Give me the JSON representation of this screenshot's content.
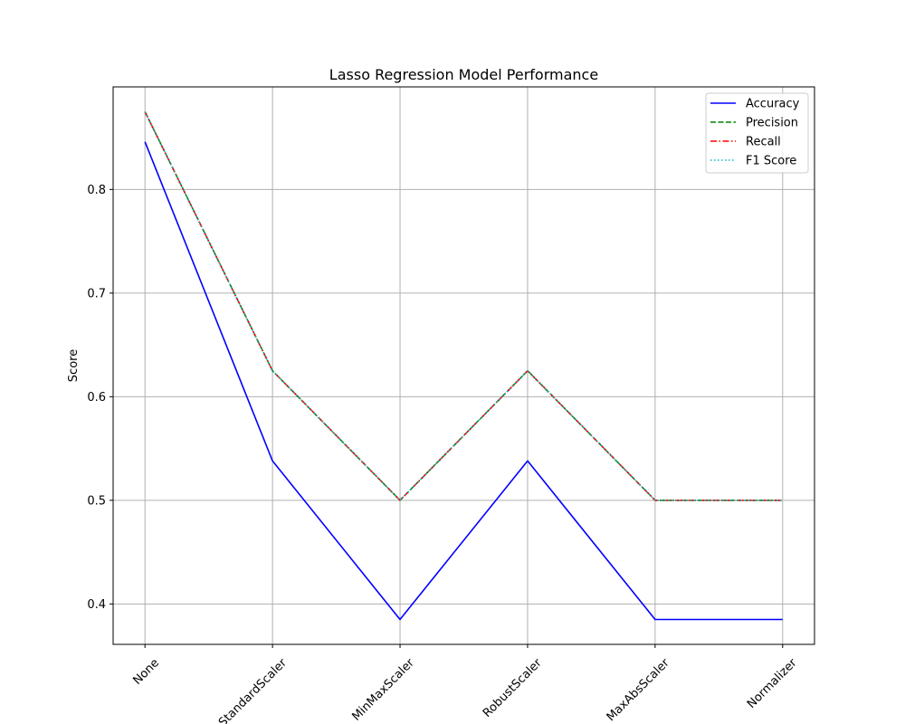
{
  "chart_data": {
    "type": "line",
    "title": "Lasso Regression Model Performance",
    "xlabel": "",
    "ylabel": "Score",
    "categories": [
      "None",
      "StandardScaler",
      "MinMaxScaler",
      "RobustScaler",
      "MaxAbsScaler",
      "Normalizer"
    ],
    "ylim": [
      0.361,
      0.899
    ],
    "yticks": [
      0.4,
      0.5,
      0.6,
      0.7,
      0.8
    ],
    "grid": true,
    "legend_position": "top-right",
    "series": [
      {
        "name": "Accuracy",
        "values": [
          0.846,
          0.538,
          0.385,
          0.538,
          0.385,
          0.385
        ],
        "color": "#0000ff",
        "style": "solid"
      },
      {
        "name": "Precision",
        "values": [
          0.875,
          0.625,
          0.5,
          0.625,
          0.5,
          0.5
        ],
        "color": "#008000",
        "style": "dashed"
      },
      {
        "name": "Recall",
        "values": [
          0.875,
          0.625,
          0.5,
          0.625,
          0.5,
          0.5
        ],
        "color": "#ff0000",
        "style": "dashdot"
      },
      {
        "name": "F1 Score",
        "values": [
          0.875,
          0.625,
          0.5,
          0.625,
          0.5,
          0.5
        ],
        "color": "#00bfbf",
        "style": "dotted"
      }
    ]
  }
}
